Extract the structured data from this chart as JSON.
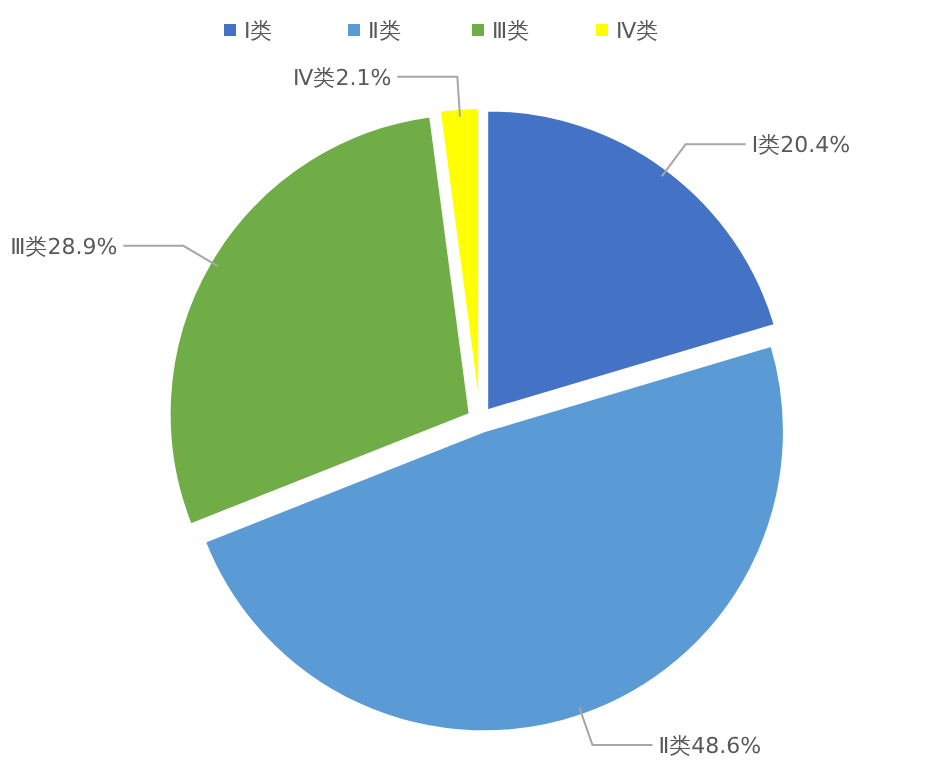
{
  "chart_data": {
    "type": "pie",
    "categories": [
      "Ⅰ类",
      "Ⅱ类",
      "Ⅲ类",
      "Ⅳ类"
    ],
    "values": [
      20.4,
      48.6,
      28.9,
      2.1
    ],
    "colors": [
      "#4472c4",
      "#5b9bd5",
      "#70ad47",
      "#ffff00"
    ],
    "value_labels": [
      "Ⅰ类20.4%",
      "Ⅱ类48.6%",
      "Ⅲ类28.9%",
      "Ⅳ类2.1%"
    ],
    "legend": "top"
  }
}
